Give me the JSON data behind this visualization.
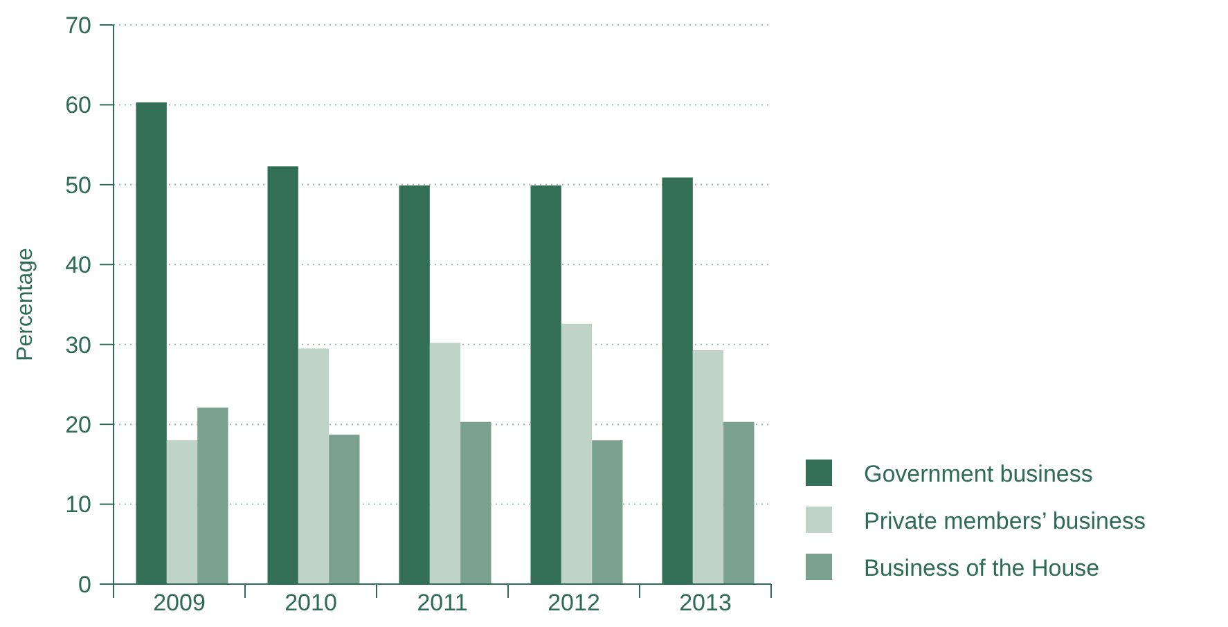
{
  "chart_data": {
    "type": "bar",
    "ylabel": "Percentage",
    "categories": [
      "2009",
      "2010",
      "2011",
      "2012",
      "2013"
    ],
    "series": [
      {
        "name": "Government business",
        "color": "#336f57",
        "values": [
          60.3,
          52.3,
          49.9,
          49.9,
          50.9
        ]
      },
      {
        "name": "Private members’ business",
        "color": "#bfd3c9",
        "values": [
          18.0,
          29.5,
          30.2,
          32.6,
          29.3
        ]
      },
      {
        "name": "Business of the House",
        "color": "#7aa08f",
        "values": [
          22.1,
          18.7,
          20.3,
          18.0,
          20.3
        ]
      }
    ],
    "ylim": [
      0,
      70
    ],
    "yticks": [
      0,
      10,
      20,
      30,
      40,
      50,
      60,
      70
    ],
    "grid": "y",
    "legend": "right"
  }
}
